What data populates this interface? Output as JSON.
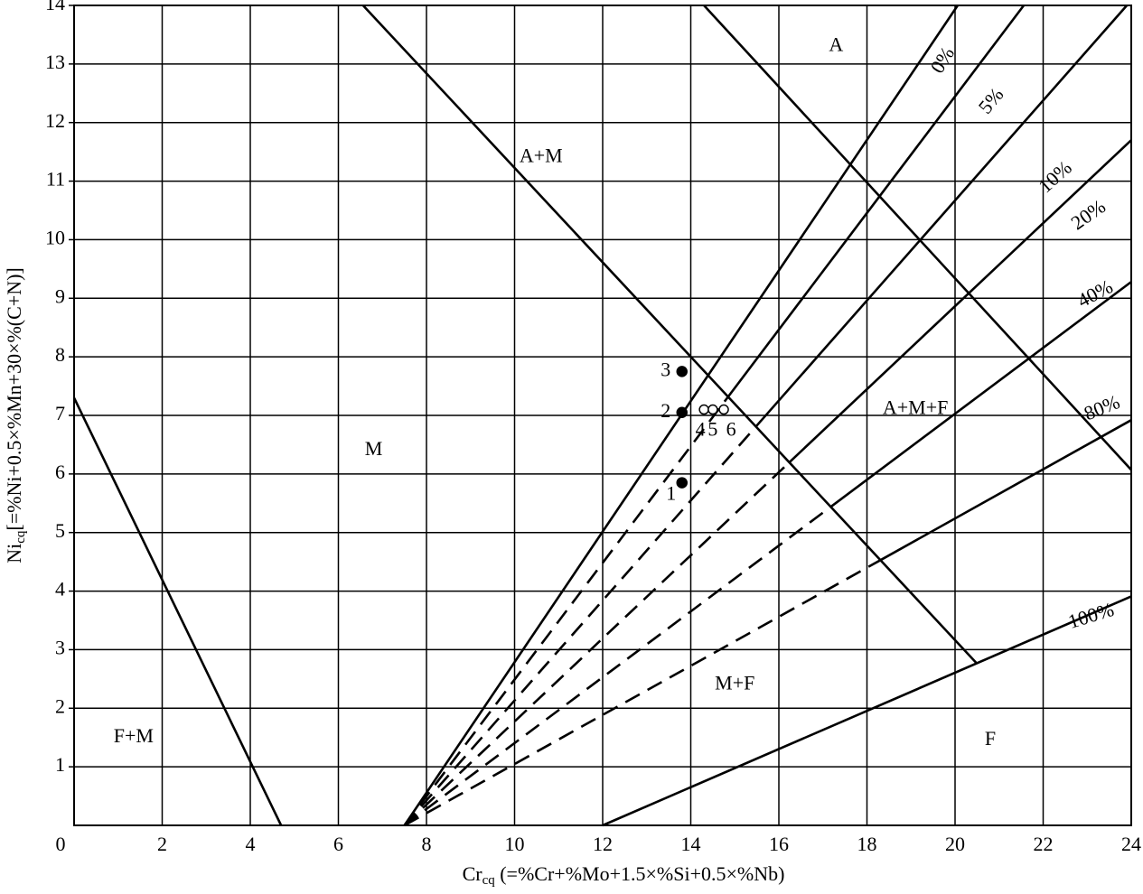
{
  "chart_data": {
    "type": "line",
    "x_label": {
      "main": "Cr",
      "sub": "cq",
      "rest": " (=%Cr+%Mo+1.5×%Si+0.5×%Nb)"
    },
    "y_label": {
      "main": "Ni",
      "sub": "cq",
      "rest": "[=%Ni+0.5×%Mn+30×%(C+N)]"
    },
    "xlim": [
      0,
      24
    ],
    "ylim": [
      0,
      14
    ],
    "xticks": [
      0,
      2,
      4,
      6,
      8,
      10,
      12,
      14,
      16,
      18,
      20,
      22,
      24
    ],
    "yticks": [
      1,
      2,
      3,
      4,
      5,
      6,
      7,
      8,
      9,
      10,
      11,
      12,
      13,
      14
    ],
    "grid": true,
    "color": "#000000",
    "series": [
      {
        "x": [
          0,
          4.7
        ],
        "values": [
          7.3,
          0
        ]
      },
      {
        "x": [
          6.56,
          20.5
        ],
        "values": [
          14,
          2.76
        ]
      },
      {
        "x": [
          14.3,
          24
        ],
        "values": [
          14,
          6.07
        ]
      },
      {
        "x": [
          7.5,
          20.06
        ],
        "values": [
          0,
          14
        ],
        "label": "0%"
      },
      {
        "x": [
          7.5,
          14.85
        ],
        "values": [
          0,
          7.32
        ],
        "dashed": true
      },
      {
        "x": [
          14.85,
          21.56
        ],
        "values": [
          7.32,
          14
        ],
        "label": "5%"
      },
      {
        "x": [
          7.5,
          15.48
        ],
        "values": [
          0,
          6.81
        ],
        "dashed": true
      },
      {
        "x": [
          15.48,
          23.9
        ],
        "values": [
          6.81,
          14
        ],
        "label": "10%"
      },
      {
        "x": [
          7.5,
          16.24
        ],
        "values": [
          0,
          6.2
        ],
        "dashed": true
      },
      {
        "x": [
          16.24,
          24
        ],
        "values": [
          6.2,
          11.7
        ],
        "label": "20%"
      },
      {
        "x": [
          7.5,
          17.18
        ],
        "values": [
          0,
          5.44
        ],
        "dashed": true
      },
      {
        "x": [
          17.18,
          24
        ],
        "values": [
          5.44,
          9.28
        ],
        "label": "40%"
      },
      {
        "x": [
          7.5,
          18.31
        ],
        "values": [
          0,
          4.53
        ],
        "dashed": true
      },
      {
        "x": [
          18.31,
          24
        ],
        "values": [
          4.53,
          6.92
        ],
        "label": "80%"
      },
      {
        "x": [
          12,
          24
        ],
        "values": [
          0,
          3.91
        ],
        "label": "100%"
      }
    ],
    "points": {
      "x": [
        13.8,
        13.8,
        13.8,
        14.3,
        14.5,
        14.75
      ],
      "values": [
        5.85,
        7.05,
        7.75,
        7.1,
        7.1,
        7.1
      ],
      "labels": [
        "1",
        "2",
        "3",
        "4",
        "5",
        "6"
      ],
      "filled": [
        true,
        true,
        true,
        false,
        false,
        false
      ]
    },
    "annotations": [
      "A",
      "A+M",
      "M",
      "A+M+F",
      "M+F",
      "F+M",
      "F"
    ]
  }
}
